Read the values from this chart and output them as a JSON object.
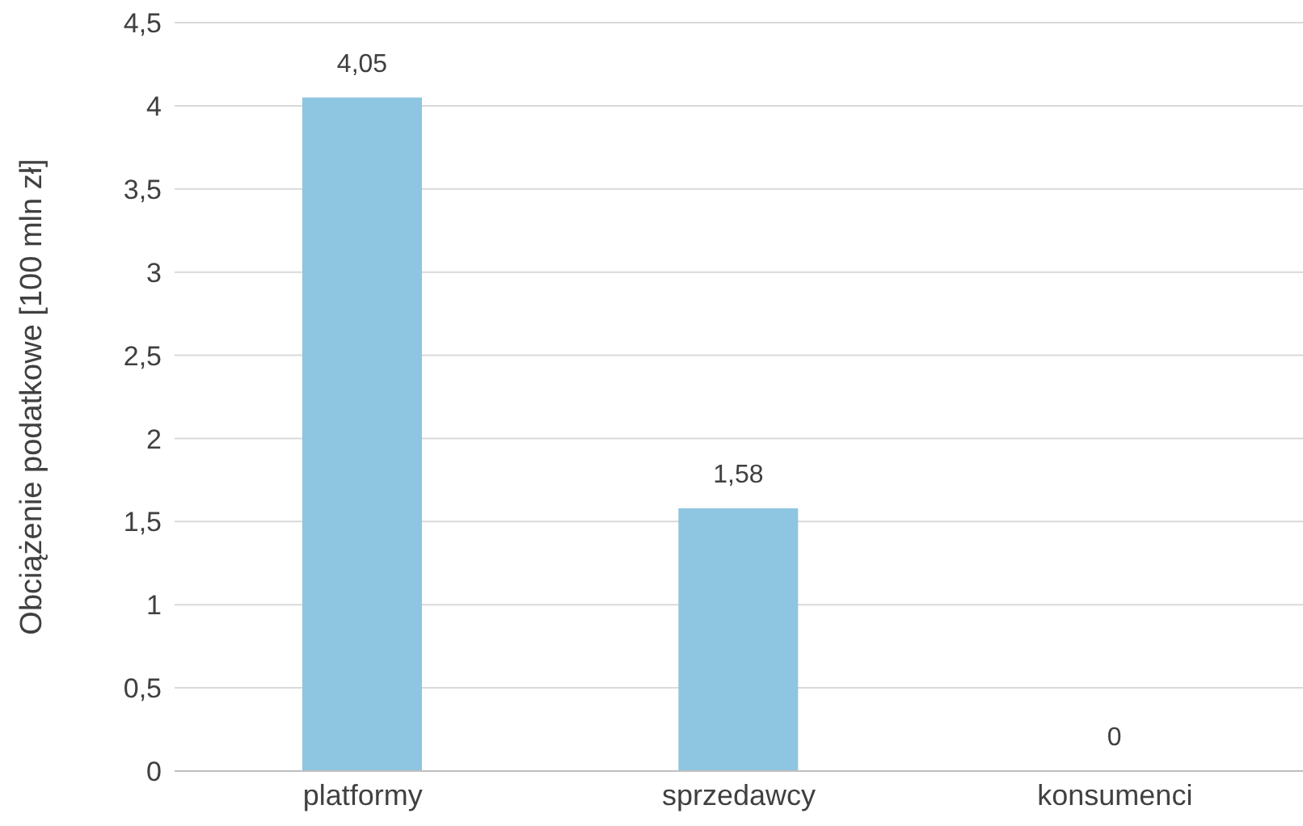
{
  "chart_data": {
    "type": "bar",
    "ylabel": "Obciążenie podatkowe [100 mln zł]",
    "categories": [
      "platformy",
      "sprzedawcy",
      "konsumenci"
    ],
    "values": [
      4.05,
      1.58,
      0
    ],
    "value_labels": [
      "4,05",
      "1,58",
      "0"
    ],
    "color": "#8ec5e0",
    "ylim": [
      0,
      4.5
    ],
    "yticks": [
      0,
      {
        "value": 0.5,
        "label": "0,5"
      },
      1,
      {
        "value": 1.5,
        "label": "1,5"
      },
      2,
      {
        "value": 2.5,
        "label": "2,5"
      },
      3,
      {
        "value": 3.5,
        "label": "3,5"
      },
      4,
      {
        "value": 4.5,
        "label": "4,5"
      }
    ],
    "grid": "y",
    "legend": false
  }
}
